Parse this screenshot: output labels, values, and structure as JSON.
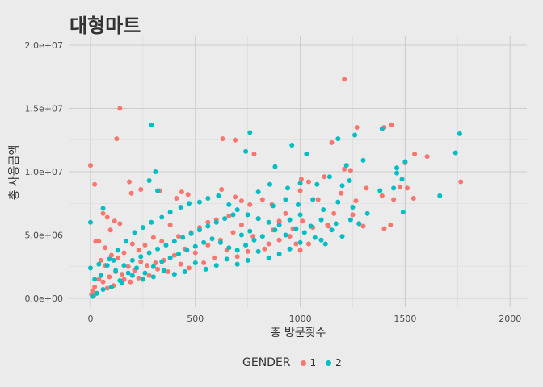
{
  "chart_data": {
    "type": "scatter",
    "title": "대형마트",
    "xlabel": "총 방문횟수",
    "ylabel": "총 사용금액",
    "xlim": [
      -100,
      2080
    ],
    "ylim": [
      -700000,
      20700000
    ],
    "x_ticks": [
      0,
      500,
      1000,
      1500,
      2000
    ],
    "x_tick_labels": [
      "0",
      "500",
      "1000",
      "1500",
      "2000"
    ],
    "y_ticks": [
      0,
      5000000,
      10000000,
      15000000,
      20000000
    ],
    "y_tick_labels": [
      "0.0e+00",
      "5.0e+06",
      "1.0e+07",
      "1.5e+07",
      "2.0e+07"
    ],
    "grid": true,
    "legend": {
      "title": "GENDER",
      "placement": "bottom"
    },
    "series": [
      {
        "name": "1",
        "color": "#F8766D",
        "points": [
          [
            1210,
            17300000
          ],
          [
            140,
            15000000
          ],
          [
            125,
            12600000
          ],
          [
            630,
            12600000
          ],
          [
            690,
            12500000
          ],
          [
            1400,
            13500000
          ],
          [
            1270,
            13500000
          ],
          [
            1435,
            13700000
          ],
          [
            1150,
            12300000
          ],
          [
            780,
            11400000
          ],
          [
            0,
            10500000
          ],
          [
            20,
            9000000
          ],
          [
            1545,
            11400000
          ],
          [
            1605,
            11200000
          ],
          [
            1765,
            9200000
          ],
          [
            1475,
            8800000
          ],
          [
            1315,
            8700000
          ],
          [
            1500,
            10700000
          ],
          [
            1210,
            10200000
          ],
          [
            1240,
            10100000
          ],
          [
            1115,
            9600000
          ],
          [
            1040,
            9200000
          ],
          [
            1005,
            9400000
          ],
          [
            1000,
            8500000
          ],
          [
            1085,
            7800000
          ],
          [
            1390,
            8100000
          ],
          [
            1445,
            7800000
          ],
          [
            1510,
            8700000
          ],
          [
            1540,
            7900000
          ],
          [
            1265,
            7700000
          ],
          [
            1195,
            8300000
          ],
          [
            1135,
            5700000
          ],
          [
            1160,
            6700000
          ],
          [
            1130,
            5800000
          ],
          [
            1250,
            6600000
          ],
          [
            1280,
            5900000
          ],
          [
            1300,
            5700000
          ],
          [
            1430,
            5800000
          ],
          [
            1400,
            5500000
          ],
          [
            185,
            9200000
          ],
          [
            60,
            6700000
          ],
          [
            80,
            6400000
          ],
          [
            25,
            4500000
          ],
          [
            40,
            4500000
          ],
          [
            95,
            5400000
          ],
          [
            115,
            6100000
          ],
          [
            140,
            5900000
          ],
          [
            70,
            4000000
          ],
          [
            195,
            8300000
          ],
          [
            240,
            8600000
          ],
          [
            330,
            8500000
          ],
          [
            410,
            7900000
          ],
          [
            435,
            8400000
          ],
          [
            465,
            8200000
          ],
          [
            625,
            8600000
          ],
          [
            690,
            8000000
          ],
          [
            720,
            7700000
          ],
          [
            760,
            7400000
          ],
          [
            820,
            7800000
          ],
          [
            865,
            7400000
          ],
          [
            930,
            6700000
          ],
          [
            965,
            5500000
          ],
          [
            1010,
            6100000
          ],
          [
            1060,
            5600000
          ],
          [
            900,
            4600000
          ],
          [
            950,
            4900000
          ],
          [
            980,
            4300000
          ],
          [
            1000,
            3800000
          ],
          [
            1040,
            4300000
          ],
          [
            830,
            3900000
          ],
          [
            870,
            5400000
          ],
          [
            775,
            4900000
          ],
          [
            720,
            5800000
          ],
          [
            660,
            6500000
          ],
          [
            600,
            6200000
          ],
          [
            560,
            6000000
          ],
          [
            520,
            5600000
          ],
          [
            480,
            5200000
          ],
          [
            420,
            4900000
          ],
          [
            380,
            5800000
          ],
          [
            340,
            4500000
          ],
          [
            300,
            4800000
          ],
          [
            260,
            4200000
          ],
          [
            230,
            3800000
          ],
          [
            200,
            4300000
          ],
          [
            160,
            3600000
          ],
          [
            130,
            3200000
          ],
          [
            100,
            3400000
          ],
          [
            70,
            2600000
          ],
          [
            50,
            3000000
          ],
          [
            620,
            4600000
          ],
          [
            680,
            5200000
          ],
          [
            560,
            4200000
          ],
          [
            500,
            3600000
          ],
          [
            450,
            3900000
          ],
          [
            400,
            3400000
          ],
          [
            350,
            3000000
          ],
          [
            310,
            2800000
          ],
          [
            270,
            2600000
          ],
          [
            240,
            2900000
          ],
          [
            210,
            2200000
          ],
          [
            180,
            2500000
          ],
          [
            150,
            1900000
          ],
          [
            120,
            2100000
          ],
          [
            90,
            1700000
          ],
          [
            60,
            1300000
          ],
          [
            40,
            1500000
          ],
          [
            20,
            900000
          ],
          [
            10,
            600000
          ],
          [
            5,
            300000
          ],
          [
            750,
            3700000
          ],
          [
            700,
            3300000
          ],
          [
            650,
            3800000
          ],
          [
            590,
            3200000
          ],
          [
            540,
            2800000
          ],
          [
            470,
            2400000
          ],
          [
            430,
            2700000
          ],
          [
            370,
            2100000
          ],
          [
            320,
            2300000
          ],
          [
            280,
            1800000
          ],
          [
            230,
            1600000
          ],
          [
            190,
            1300000
          ],
          [
            160,
            1500000
          ],
          [
            110,
            1000000
          ],
          [
            80,
            800000
          ],
          [
            30,
            400000
          ],
          [
            15,
            200000
          ],
          [
            850,
            4300000
          ],
          [
            800,
            6300000
          ],
          [
            900,
            6100000
          ]
        ]
      },
      {
        "name": "2",
        "color": "#00BFC4",
        "points": [
          [
            290,
            13700000
          ],
          [
            1760,
            13000000
          ],
          [
            1180,
            12600000
          ],
          [
            1260,
            12900000
          ],
          [
            1390,
            13400000
          ],
          [
            1740,
            11500000
          ],
          [
            1500,
            10800000
          ],
          [
            1460,
            10300000
          ],
          [
            1460,
            9900000
          ],
          [
            1485,
            9400000
          ],
          [
            1665,
            8100000
          ],
          [
            1490,
            6800000
          ],
          [
            1300,
            10900000
          ],
          [
            1380,
            8500000
          ],
          [
            1445,
            8700000
          ],
          [
            1220,
            10500000
          ],
          [
            1235,
            9300000
          ],
          [
            1200,
            8900000
          ],
          [
            1030,
            11400000
          ],
          [
            960,
            12100000
          ],
          [
            1140,
            9600000
          ],
          [
            1080,
            9000000
          ],
          [
            1000,
            9100000
          ],
          [
            940,
            8700000
          ],
          [
            880,
            10400000
          ],
          [
            855,
            9000000
          ],
          [
            800,
            8400000
          ],
          [
            760,
            13100000
          ],
          [
            740,
            11600000
          ],
          [
            310,
            10000000
          ],
          [
            280,
            9300000
          ],
          [
            320,
            8500000
          ],
          [
            0,
            6000000
          ],
          [
            60,
            7100000
          ],
          [
            0,
            2400000
          ],
          [
            20,
            1500000
          ],
          [
            40,
            2700000
          ],
          [
            90,
            3100000
          ],
          [
            130,
            3800000
          ],
          [
            170,
            4500000
          ],
          [
            210,
            5200000
          ],
          [
            250,
            5600000
          ],
          [
            290,
            6000000
          ],
          [
            340,
            6400000
          ],
          [
            380,
            6800000
          ],
          [
            430,
            7200000
          ],
          [
            470,
            7500000
          ],
          [
            520,
            7600000
          ],
          [
            560,
            7900000
          ],
          [
            610,
            8100000
          ],
          [
            660,
            7400000
          ],
          [
            700,
            7000000
          ],
          [
            750,
            6600000
          ],
          [
            800,
            6300000
          ],
          [
            850,
            6000000
          ],
          [
            900,
            5800000
          ],
          [
            950,
            6200000
          ],
          [
            1000,
            6600000
          ],
          [
            1050,
            5700000
          ],
          [
            1100,
            6200000
          ],
          [
            1150,
            5400000
          ],
          [
            1200,
            4900000
          ],
          [
            1100,
            4600000
          ],
          [
            1000,
            4400000
          ],
          [
            950,
            3900000
          ],
          [
            900,
            3500000
          ],
          [
            850,
            3200000
          ],
          [
            800,
            3700000
          ],
          [
            750,
            3000000
          ],
          [
            700,
            2700000
          ],
          [
            650,
            3100000
          ],
          [
            600,
            2600000
          ],
          [
            550,
            2300000
          ],
          [
            500,
            2800000
          ],
          [
            450,
            2100000
          ],
          [
            400,
            1900000
          ],
          [
            350,
            2200000
          ],
          [
            300,
            1700000
          ],
          [
            250,
            1500000
          ],
          [
            200,
            1800000
          ],
          [
            150,
            1200000
          ],
          [
            100,
            900000
          ],
          [
            60,
            700000
          ],
          [
            30,
            400000
          ],
          [
            10,
            150000
          ],
          [
            120,
            2200000
          ],
          [
            160,
            2600000
          ],
          [
            200,
            3000000
          ],
          [
            240,
            3300000
          ],
          [
            280,
            3600000
          ],
          [
            320,
            3900000
          ],
          [
            360,
            4200000
          ],
          [
            400,
            4500000
          ],
          [
            440,
            4800000
          ],
          [
            480,
            5100000
          ],
          [
            520,
            5400000
          ],
          [
            560,
            5700000
          ],
          [
            600,
            6000000
          ],
          [
            640,
            6300000
          ],
          [
            680,
            6600000
          ],
          [
            720,
            5000000
          ],
          [
            760,
            5300000
          ],
          [
            820,
            4900000
          ],
          [
            880,
            5400000
          ],
          [
            930,
            5000000
          ],
          [
            980,
            5500000
          ],
          [
            1020,
            5200000
          ],
          [
            1070,
            4800000
          ],
          [
            1120,
            4300000
          ],
          [
            1170,
            5900000
          ],
          [
            1240,
            6200000
          ],
          [
            1280,
            5900000
          ],
          [
            1320,
            6700000
          ],
          [
            1250,
            7200000
          ],
          [
            1180,
            7600000
          ],
          [
            1110,
            7000000
          ],
          [
            1060,
            7800000
          ],
          [
            990,
            7400000
          ],
          [
            930,
            7800000
          ],
          [
            870,
            7300000
          ],
          [
            50,
            1800000
          ],
          [
            80,
            2600000
          ],
          [
            110,
            3000000
          ],
          [
            140,
            1400000
          ],
          [
            180,
            2000000
          ],
          [
            220,
            2400000
          ],
          [
            260,
            2000000
          ],
          [
            300,
            2500000
          ],
          [
            340,
            2900000
          ],
          [
            380,
            3200000
          ],
          [
            420,
            3500000
          ],
          [
            460,
            3800000
          ],
          [
            500,
            4100000
          ],
          [
            540,
            4400000
          ],
          [
            580,
            4700000
          ],
          [
            620,
            4400000
          ],
          [
            660,
            4000000
          ],
          [
            700,
            3800000
          ],
          [
            740,
            4200000
          ],
          [
            780,
            4600000
          ]
        ]
      }
    ]
  }
}
